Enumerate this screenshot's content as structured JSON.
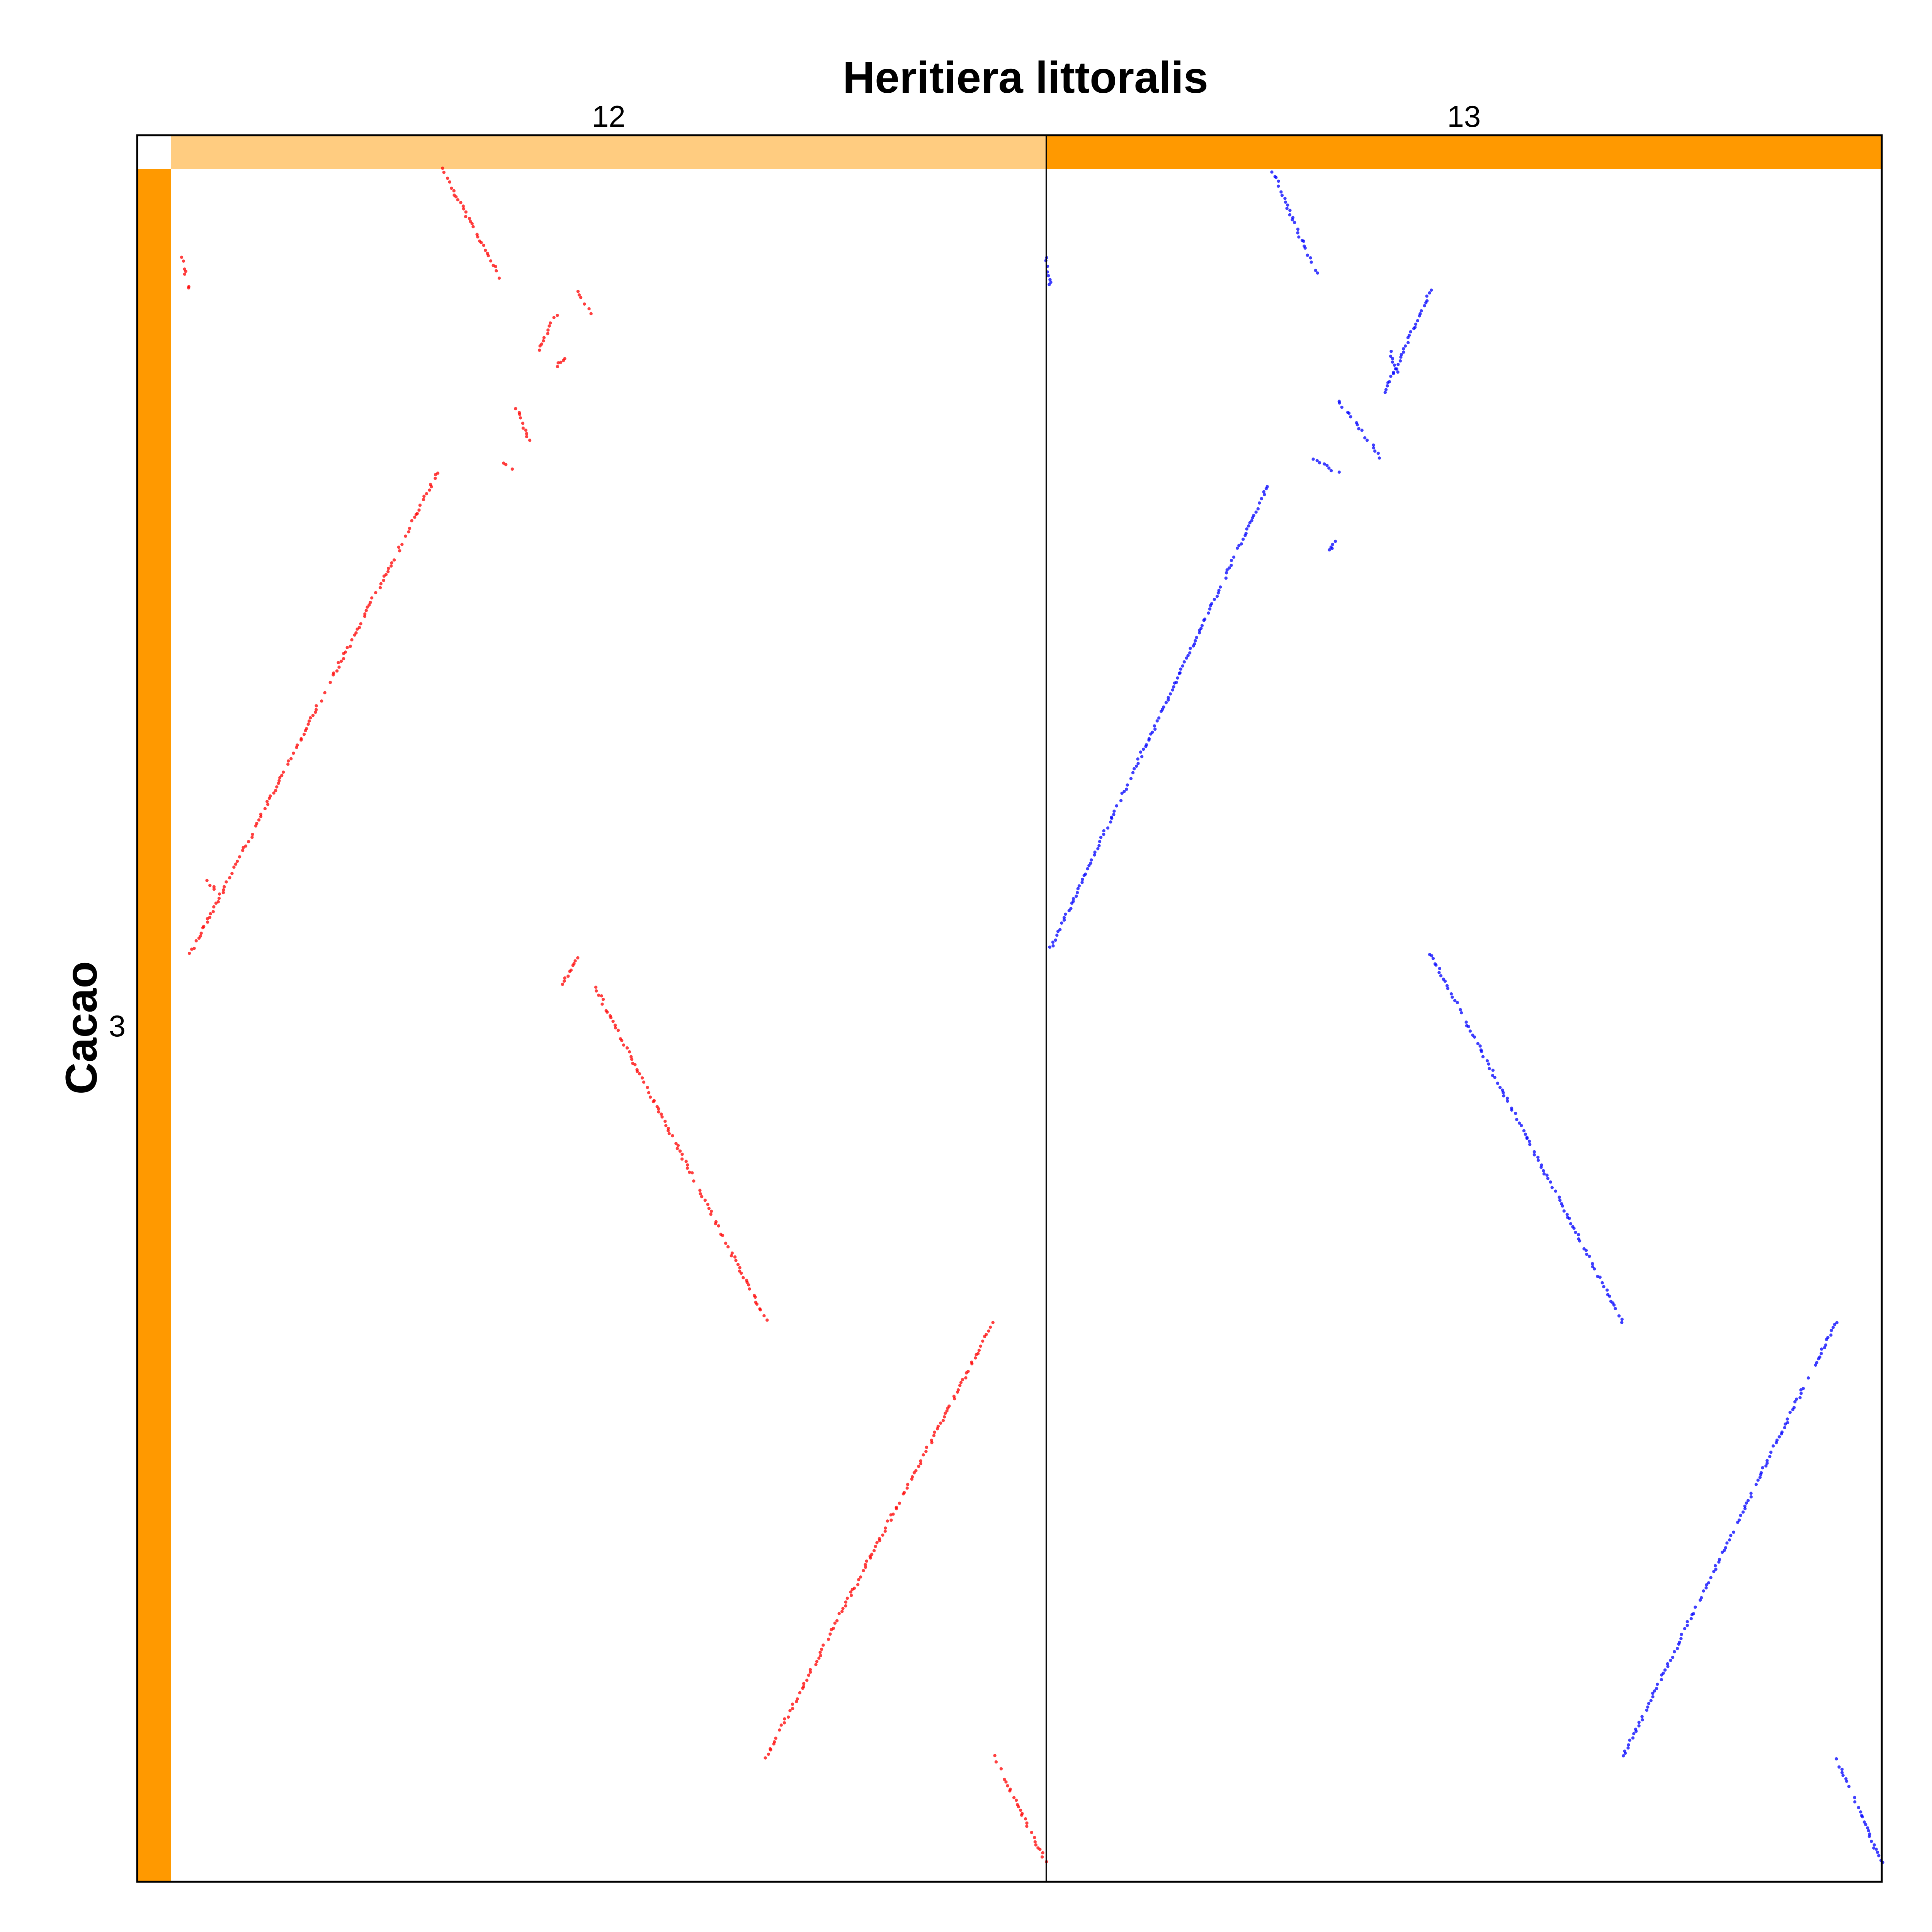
{
  "chart_data": {
    "type": "scatter",
    "title": "Heritiera littoralis",
    "xlabel": "Heritiera littoralis",
    "ylabel": "Cacao",
    "x_chromosomes": [
      {
        "label": "12",
        "color": "#FFCC80",
        "length": 1.0
      },
      {
        "label": "13",
        "color": "#FF9900",
        "length": 0.955
      }
    ],
    "y_chromosomes": [
      {
        "label": "3",
        "color": "#FF9900",
        "length": 1.0
      }
    ],
    "series": [
      {
        "chromosome_x": "12",
        "color": "#FF0000",
        "segments": [
          {
            "x": [
              0.31,
              0.375
            ],
            "y": [
              0.0,
              0.063
            ]
          },
          {
            "x": [
              0.012,
              0.02
            ],
            "y": [
              0.052,
              0.07
            ]
          },
          {
            "x": [
              0.465,
              0.48
            ],
            "y": [
              0.072,
              0.084
            ]
          },
          {
            "x": [
              0.44,
              0.42
            ],
            "y": [
              0.085,
              0.105
            ]
          },
          {
            "x": [
              0.44,
              0.45
            ],
            "y": [
              0.115,
              0.11
            ]
          },
          {
            "x": [
              0.395,
              0.41
            ],
            "y": [
              0.14,
              0.16
            ]
          },
          {
            "x": [
              0.38,
              0.39
            ],
            "y": [
              0.172,
              0.175
            ]
          },
          {
            "x": [
              0.022,
              0.305
            ],
            "y": [
              0.458,
              0.177
            ]
          },
          {
            "x": [
              0.04,
              0.05
            ],
            "y": [
              0.415,
              0.42
            ]
          },
          {
            "x": [
              0.445,
              0.465
            ],
            "y": [
              0.478,
              0.46
            ]
          },
          {
            "x": [
              0.485,
              0.68
            ],
            "y": [
              0.478,
              0.672
            ]
          },
          {
            "x": [
              0.68,
              0.94
            ],
            "y": [
              0.927,
              0.673
            ]
          },
          {
            "x": [
              0.94,
              1.0
            ],
            "y": [
              0.927,
              0.989
            ]
          }
        ]
      },
      {
        "chromosome_x": "13",
        "color": "#0000FF",
        "segments": [
          {
            "x": [
              0.0,
              0.005
            ],
            "y": [
              0.052,
              0.068
            ]
          },
          {
            "x": [
              0.27,
              0.325
            ],
            "y": [
              0.0,
              0.063
            ]
          },
          {
            "x": [
              0.46,
              0.405
            ],
            "y": [
              0.071,
              0.131
            ]
          },
          {
            "x": [
              0.41,
              0.42
            ],
            "y": [
              0.105,
              0.118
            ]
          },
          {
            "x": [
              0.35,
              0.4
            ],
            "y": [
              0.135,
              0.168
            ]
          },
          {
            "x": [
              0.32,
              0.35
            ],
            "y": [
              0.17,
              0.177
            ]
          },
          {
            "x": [
              0.34,
              0.345
            ],
            "y": [
              0.223,
              0.218
            ]
          },
          {
            "x": [
              0.005,
              0.265
            ],
            "y": [
              0.455,
              0.185
            ]
          },
          {
            "x": [
              0.46,
              0.69
            ],
            "y": [
              0.458,
              0.673
            ]
          },
          {
            "x": [
              0.69,
              0.945
            ],
            "y": [
              0.927,
              0.673
            ]
          },
          {
            "x": [
              0.945,
              1.0
            ],
            "y": [
              0.927,
              0.989
            ]
          }
        ]
      }
    ],
    "grid": false,
    "legend": "none"
  }
}
